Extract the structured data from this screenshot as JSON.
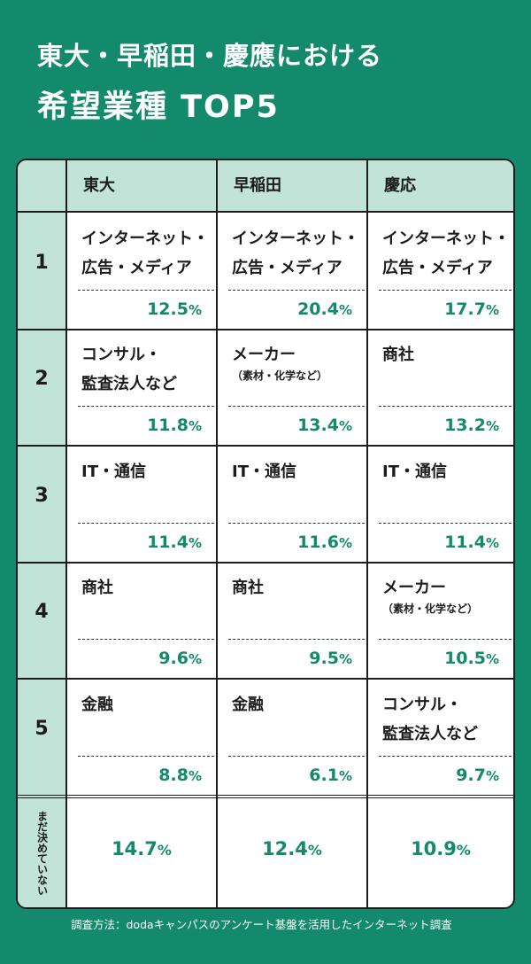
{
  "title": {
    "line1": "東大・早稲田・慶應における",
    "line2": "希望業種 TOP5"
  },
  "table": {
    "columns": [
      "東大",
      "早稲田",
      "慶応"
    ],
    "rows": [
      {
        "rank": "1",
        "cells": [
          {
            "name": "インターネット・",
            "name2": "広告・メディア",
            "sub": "",
            "pct": "12.5",
            "unit": "%"
          },
          {
            "name": "インターネット・",
            "name2": "広告・メディア",
            "sub": "",
            "pct": "20.4",
            "unit": "%"
          },
          {
            "name": "インターネット・",
            "name2": "広告・メディア",
            "sub": "",
            "pct": "17.7",
            "unit": "%"
          }
        ]
      },
      {
        "rank": "2",
        "cells": [
          {
            "name": "コンサル・",
            "name2": "監査法人など",
            "sub": "",
            "pct": "11.8",
            "unit": "%"
          },
          {
            "name": "メーカー",
            "name2": "",
            "sub": "（素材・化学など）",
            "pct": "13.4",
            "unit": "%"
          },
          {
            "name": "商社",
            "name2": "",
            "sub": "",
            "pct": "13.2",
            "unit": "%"
          }
        ]
      },
      {
        "rank": "3",
        "cells": [
          {
            "name": "IT・通信",
            "name2": "",
            "sub": "",
            "pct": "11.4",
            "unit": "%"
          },
          {
            "name": "IT・通信",
            "name2": "",
            "sub": "",
            "pct": "11.6",
            "unit": "%"
          },
          {
            "name": "IT・通信",
            "name2": "",
            "sub": "",
            "pct": "11.4",
            "unit": "%"
          }
        ]
      },
      {
        "rank": "4",
        "cells": [
          {
            "name": "商社",
            "name2": "",
            "sub": "",
            "pct": "9.6",
            "unit": "%"
          },
          {
            "name": "商社",
            "name2": "",
            "sub": "",
            "pct": "9.5",
            "unit": "%"
          },
          {
            "name": "メーカー",
            "name2": "",
            "sub": "（素材・化学など）",
            "pct": "10.5",
            "unit": "%"
          }
        ]
      },
      {
        "rank": "5",
        "cells": [
          {
            "name": "金融",
            "name2": "",
            "sub": "",
            "pct": "8.8",
            "unit": "%"
          },
          {
            "name": "金融",
            "name2": "",
            "sub": "",
            "pct": "6.1",
            "unit": "%"
          },
          {
            "name": "コンサル・",
            "name2": "監査法人など",
            "sub": "",
            "pct": "9.7",
            "unit": "%"
          }
        ]
      }
    ],
    "undecided": {
      "label": "まだ決めていない",
      "values": [
        "14.7",
        "12.4",
        "10.9"
      ],
      "unit": "%"
    }
  },
  "footer": "調査方法：dodaキャンパスのアンケート基盤を活用したインターネット調査",
  "colors": {
    "background": "#138a6b",
    "header_fill": "#c1e3d8",
    "accent": "#138a6b"
  }
}
